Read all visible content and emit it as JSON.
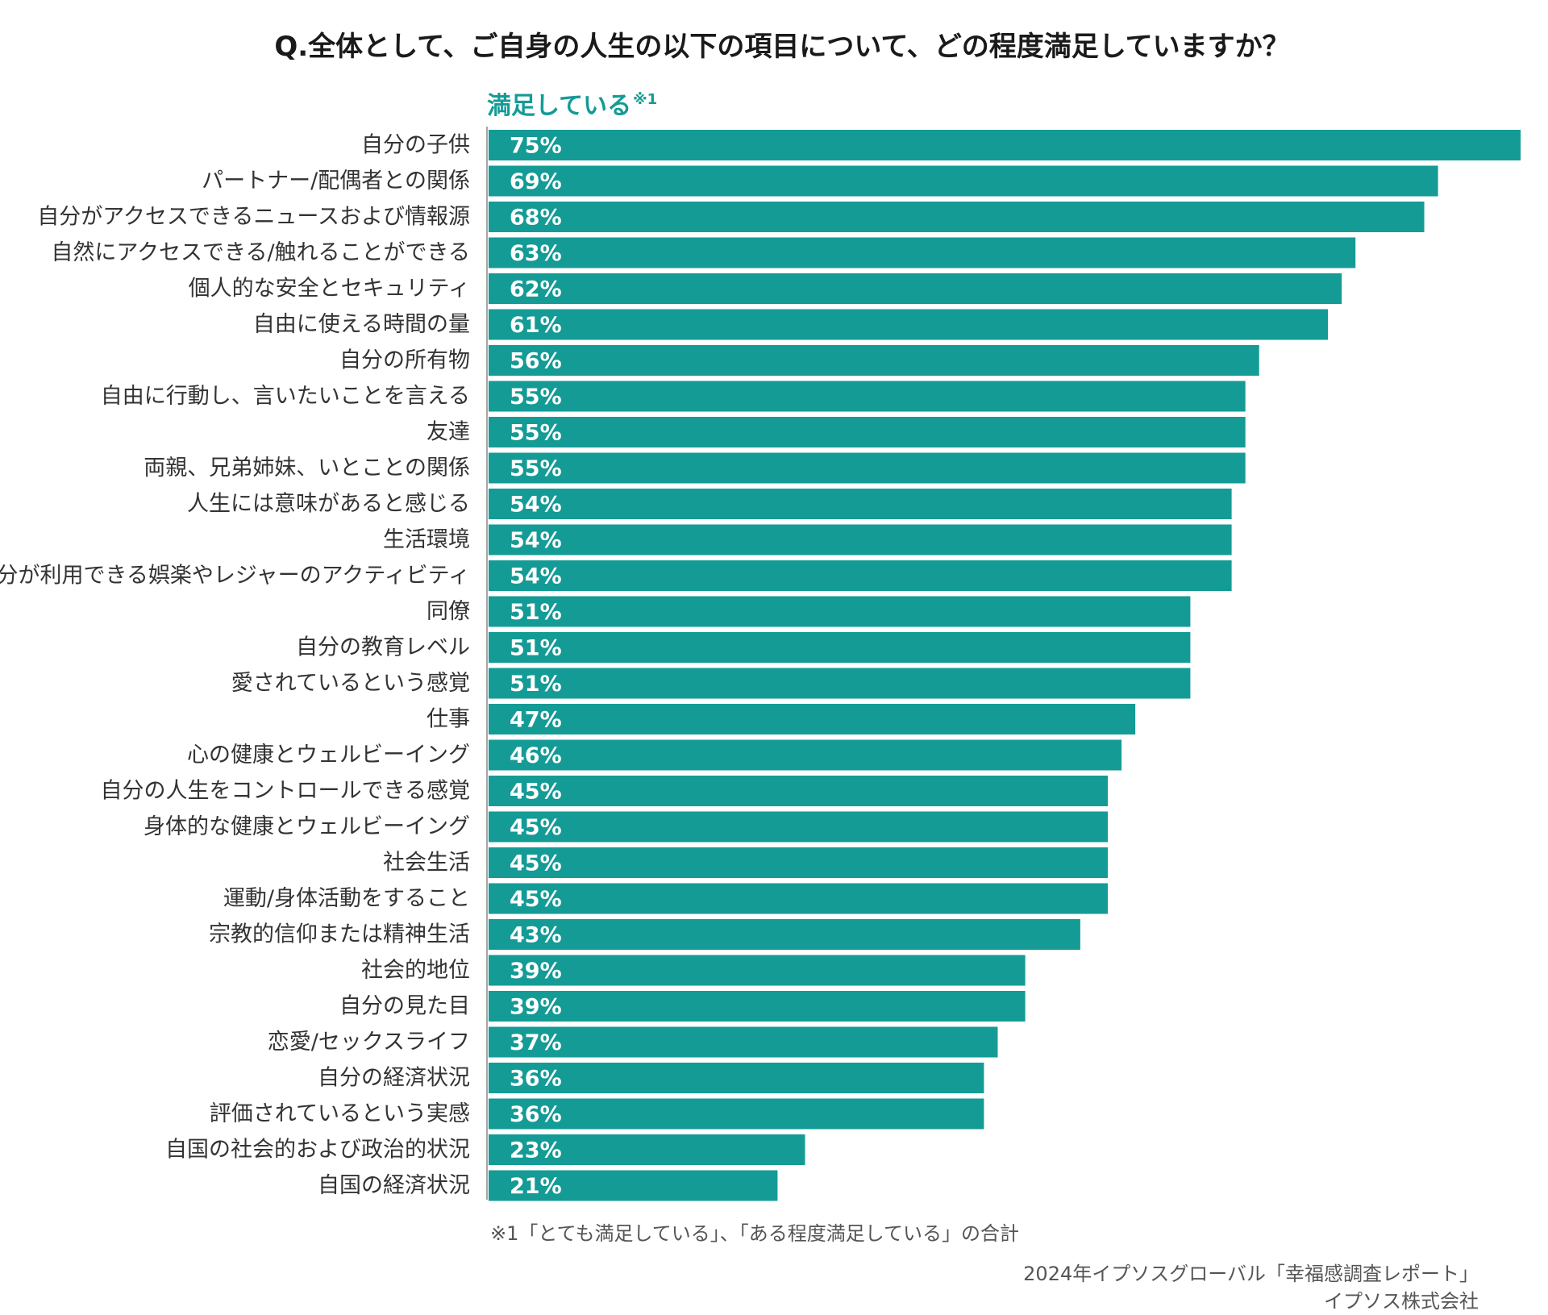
{
  "chart_data": {
    "type": "bar",
    "orientation": "horizontal",
    "title": "Q.全体として、ご自身の人生の以下の項目について、どの程度満足していますか？",
    "series_name": "満足している",
    "series_note_mark": "※1",
    "categories": [
      "自分の子供",
      "パートナー/配偶者との関係",
      "自分がアクセスできるニュースおよび情報源",
      "自然にアクセスできる/触れることができる",
      "個人的な安全とセキュリティ",
      "自由に使える時間の量",
      "自分の所有物",
      "自由に行動し、言いたいことを言える",
      "友達",
      "両親、兄弟姉妹、いとことの関係",
      "人生には意味があると感じる",
      "生活環境",
      "自分が利用できる娯楽やレジャーのアクティビティ",
      "同僚",
      "自分の教育レベル",
      "愛されているという感覚",
      "仕事",
      "心の健康とウェルビーイング",
      "自分の人生をコントロールできる感覚",
      "身体的な健康とウェルビーイング",
      "社会生活",
      "運動/身体活動をすること",
      "宗教的信仰または精神生活",
      "社会的地位",
      "自分の見た目",
      "恋愛/セックスライフ",
      "自分の経済状況",
      "評価されているという実感",
      "自国の社会的および政治的状況",
      "自国の経済状況"
    ],
    "values": [
      75,
      69,
      68,
      63,
      62,
      61,
      56,
      55,
      55,
      55,
      54,
      54,
      54,
      51,
      51,
      51,
      47,
      46,
      45,
      45,
      45,
      45,
      43,
      39,
      39,
      37,
      36,
      36,
      23,
      21
    ],
    "value_labels": [
      "75%",
      "69%",
      "68%",
      "63%",
      "62%",
      "61%",
      "56%",
      "55%",
      "55%",
      "55%",
      "54%",
      "54%",
      "54%",
      "51%",
      "51%",
      "51%",
      "47%",
      "46%",
      "45%",
      "45%",
      "45%",
      "45%",
      "43%",
      "39%",
      "39%",
      "37%",
      "36%",
      "36%",
      "23%",
      "21%"
    ],
    "unit": "%",
    "xlim": [
      0,
      75
    ],
    "grid": false,
    "legend": "none",
    "bar_color": "#149b96",
    "axis_color": "#a6a6a6"
  },
  "footnote": "※1「とても満足している」、「ある程度満足している」の合計",
  "source": {
    "line1": "2024年イプソスグローバル「幸福感調査レポート」",
    "line2": "イプソス株式会社"
  },
  "colors": {
    "accent": "#149b96",
    "text": "#333333"
  }
}
